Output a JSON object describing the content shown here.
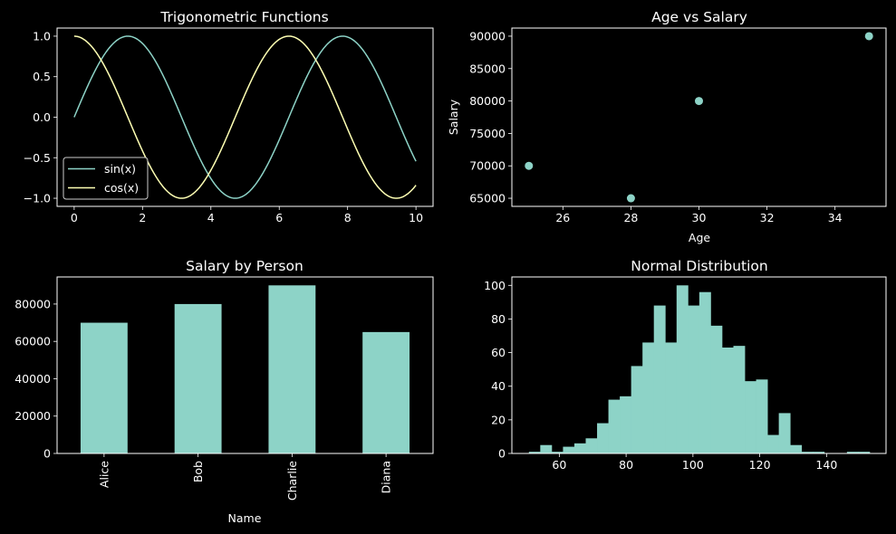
{
  "colors": {
    "background": "#000000",
    "foreground": "#ffffff",
    "series1": "#8dd3c7",
    "series2": "#feffb3"
  },
  "chart_data": [
    {
      "type": "line",
      "title": "Trigonometric Functions",
      "xlabel": "",
      "ylabel": "",
      "xlim": [
        -0.5,
        10.5
      ],
      "ylim": [
        -1.1,
        1.1
      ],
      "xticks": [
        0,
        2,
        4,
        6,
        8,
        10
      ],
      "yticks": [
        -1.0,
        -0.5,
        0.0,
        0.5,
        1.0
      ],
      "xtick_labels": [
        "0",
        "2",
        "4",
        "6",
        "8",
        "10"
      ],
      "ytick_labels": [
        "−1.0",
        "−0.5",
        "0.0",
        "0.5",
        "1.0"
      ],
      "x_range": [
        0,
        10
      ],
      "series": [
        {
          "name": "sin(x)",
          "function": "sin"
        },
        {
          "name": "cos(x)",
          "function": "cos"
        }
      ],
      "legend": "lower-left",
      "grid": false
    },
    {
      "type": "scatter",
      "title": "Age vs Salary",
      "xlabel": "Age",
      "ylabel": "Salary",
      "xlim": [
        24.5,
        35.5
      ],
      "ylim": [
        63750,
        91250
      ],
      "xticks": [
        26,
        28,
        30,
        32,
        34
      ],
      "yticks": [
        65000,
        70000,
        75000,
        80000,
        85000,
        90000
      ],
      "xtick_labels": [
        "26",
        "28",
        "30",
        "32",
        "34"
      ],
      "ytick_labels": [
        "65000",
        "70000",
        "75000",
        "80000",
        "85000",
        "90000"
      ],
      "x": [
        25,
        28,
        30,
        35
      ],
      "y": [
        70000,
        65000,
        80000,
        90000
      ],
      "grid": false
    },
    {
      "type": "bar",
      "title": "Salary by Person",
      "xlabel": "Name",
      "ylabel": "",
      "ylim": [
        0,
        94500
      ],
      "categories": [
        "Alice",
        "Bob",
        "Charlie",
        "Diana"
      ],
      "values": [
        70000,
        80000,
        90000,
        65000
      ],
      "yticks": [
        0,
        20000,
        40000,
        60000,
        80000
      ],
      "ytick_labels": [
        "0",
        "20000",
        "40000",
        "60000",
        "80000"
      ],
      "grid": false
    },
    {
      "type": "bar",
      "subtype": "histogram",
      "title": "Normal Distribution",
      "xlabel": "",
      "ylabel": "",
      "xlim": [
        45.8,
        157.8
      ],
      "ylim": [
        0,
        105
      ],
      "xticks": [
        60,
        80,
        100,
        120,
        140
      ],
      "xtick_labels": [
        "60",
        "80",
        "100",
        "120",
        "140"
      ],
      "yticks": [
        0,
        20,
        40,
        60,
        80,
        100
      ],
      "ytick_labels": [
        "0",
        "20",
        "40",
        "60",
        "80",
        "100"
      ],
      "bin_start": 50.9,
      "bin_width": 3.4,
      "values": [
        1,
        5,
        1,
        4,
        6,
        9,
        18,
        32,
        34,
        52,
        66,
        88,
        66,
        100,
        88,
        96,
        76,
        63,
        64,
        43,
        44,
        11,
        24,
        5,
        1,
        1,
        0,
        0,
        1,
        1
      ],
      "grid": false
    }
  ]
}
